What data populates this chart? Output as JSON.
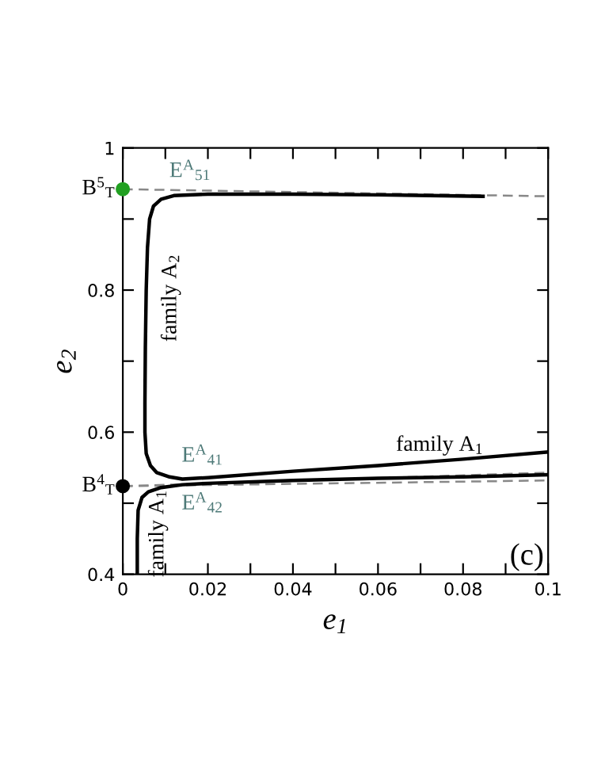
{
  "chart_data": {
    "type": "line",
    "xlabel": "e$_{1}$",
    "ylabel": "e$_{2}$",
    "xlim": [
      0,
      0.1
    ],
    "ylim": [
      0.4,
      1
    ],
    "xticks": [
      0,
      {
        "value": 0.01,
        "label": null
      },
      0.02,
      {
        "value": 0.03,
        "label": null
      },
      0.04,
      {
        "value": 0.05,
        "label": null
      },
      0.06,
      {
        "value": 0.07,
        "label": null
      },
      0.08,
      {
        "value": 0.09,
        "label": null
      },
      0.1
    ],
    "yticks": [
      0.4,
      {
        "value": 0.5,
        "label": null
      },
      0.6,
      {
        "value": 0.7,
        "label": null
      },
      0.8,
      {
        "value": 0.9,
        "label": null
      },
      1
    ],
    "grid": false,
    "legend": false,
    "series": [
      {
        "line_style": "dashed",
        "color": "#888888",
        "x": [
          0,
          0.1
        ],
        "values": [
          0.942,
          0.932
        ]
      },
      {
        "line_style": "dashed",
        "color": "#888888",
        "x": [
          0,
          0.1
        ],
        "values": [
          0.524,
          0.543
        ]
      },
      {
        "line_style": "dashed",
        "color": "#888888",
        "x": [
          0,
          0.1
        ],
        "values": [
          0.524,
          0.532
        ]
      },
      {
        "line_style": "solid",
        "color": "#000000",
        "x": [
          0.0847,
          0.06,
          0.04,
          0.02,
          0.012,
          0.009,
          0.0072,
          0.0063,
          0.0058,
          0.0055,
          0.0053,
          0.0052,
          0.0052,
          0.0055,
          0.0065,
          0.008,
          0.011,
          0.014,
          0.02,
          0.04,
          0.06,
          0.08,
          0.1
        ],
        "values": [
          0.932,
          0.934,
          0.935,
          0.935,
          0.933,
          0.928,
          0.918,
          0.9,
          0.86,
          0.8,
          0.72,
          0.64,
          0.6,
          0.57,
          0.553,
          0.543,
          0.537,
          0.534,
          0.536,
          0.545,
          0.553,
          0.562,
          0.572
        ]
      },
      {
        "line_style": "solid",
        "color": "#000000",
        "x": [
          0.0034,
          0.0034,
          0.0036,
          0.0045,
          0.006,
          0.009,
          0.014,
          0.02,
          0.04,
          0.06,
          0.08,
          0.1
        ],
        "values": [
          0.4,
          0.45,
          0.49,
          0.508,
          0.516,
          0.522,
          0.526,
          0.528,
          0.532,
          0.535,
          0.537,
          0.54
        ]
      },
      {
        "type": "scatter",
        "marker": "circle",
        "color": "#22a022",
        "x": [
          0
        ],
        "values": [
          0.942
        ]
      },
      {
        "type": "scatter",
        "marker": "circle",
        "color": "#000000",
        "x": [
          0
        ],
        "values": [
          0.524
        ]
      }
    ],
    "annotations": [
      "B$^{5}$$_{T}$",
      "B$^{4}$$_{T}$",
      "E$^{A}$$_{51}$",
      "E$^{A}$$_{41}$",
      "E$^{A}$$_{42}$",
      "family A$_{2}$",
      "family A$_{1}$",
      "family A$_{1}$",
      "(c)"
    ]
  }
}
